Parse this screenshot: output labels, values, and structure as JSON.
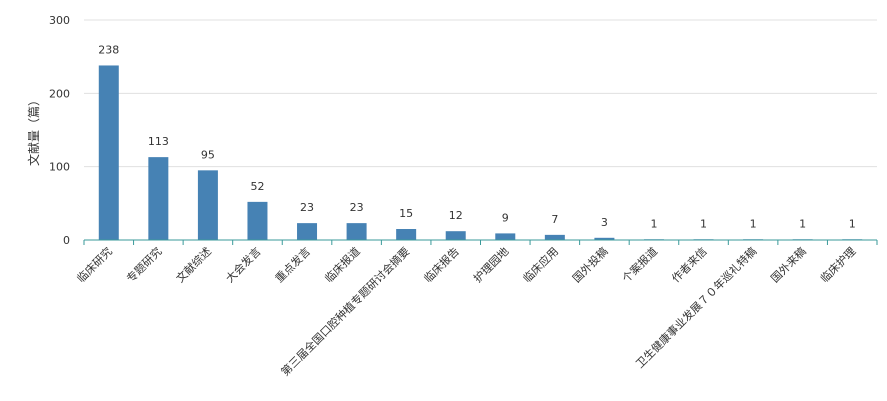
{
  "chart_data": {
    "type": "bar",
    "ylabel": "文献量（篇）",
    "ylim": [
      0,
      300
    ],
    "yticks": [
      0,
      100,
      200,
      300
    ],
    "grid": true,
    "legend": "none",
    "bar_color": "#4682b4",
    "axis_color": "#3a9a9a",
    "categories": [
      "临床研究",
      "专题研究",
      "文献综述",
      "大会发言",
      "重点发言",
      "临床报道",
      "第三届全国口腔种植专题研讨会摘要",
      "临床报告",
      "护理园地",
      "临床应用",
      "国外投稿",
      "个案报道",
      "作者来信",
      "卫生健康事业发展７０年巡礼特稿",
      "国外来稿",
      "临床护理"
    ],
    "values": [
      238,
      113,
      95,
      52,
      23,
      23,
      15,
      12,
      9,
      7,
      3,
      1,
      1,
      1,
      1,
      1
    ]
  }
}
